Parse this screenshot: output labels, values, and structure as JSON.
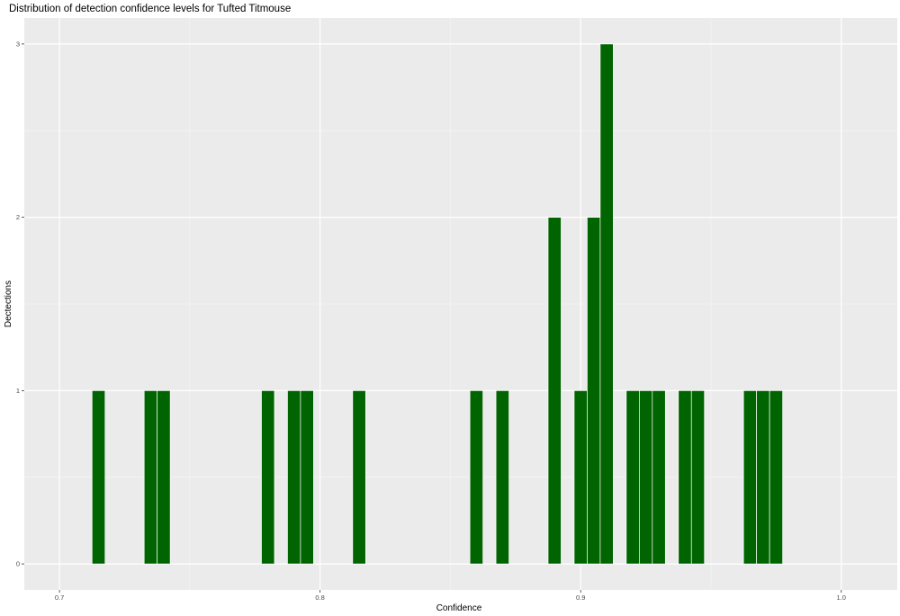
{
  "chart_data": {
    "type": "bar",
    "title": "Distribution of detection confidence levels for Tufted Titmouse",
    "xlabel": "Confidence",
    "ylabel": "Dectections",
    "xlim": [
      0.6865,
      1.0215
    ],
    "ylim": [
      -0.15,
      3.15
    ],
    "bin_width": 0.005,
    "x_ticks": [
      0.7,
      0.8,
      0.9,
      1.0
    ],
    "x_tick_labels": [
      "0.7",
      "0.8",
      "0.9",
      "1.0"
    ],
    "y_ticks": [
      0,
      1,
      2,
      3
    ],
    "y_tick_labels": [
      "0",
      "1",
      "2",
      "3"
    ],
    "grid": true,
    "bar_color": "#006400",
    "panel_color": "#ebebeb",
    "x": [
      0.715,
      0.735,
      0.74,
      0.78,
      0.79,
      0.795,
      0.815,
      0.86,
      0.87,
      0.89,
      0.9,
      0.905,
      0.91,
      0.92,
      0.925,
      0.93,
      0.94,
      0.945,
      0.965,
      0.97,
      0.975
    ],
    "values": [
      1,
      1,
      1,
      1,
      1,
      1,
      1,
      1,
      1,
      2,
      1,
      2,
      3,
      1,
      1,
      1,
      1,
      1,
      1,
      1,
      1
    ]
  }
}
